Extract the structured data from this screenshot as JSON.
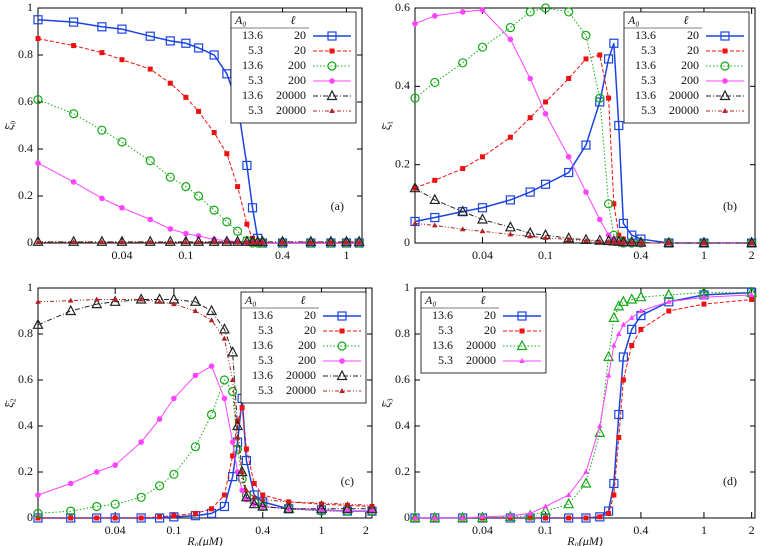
{
  "chart_data": [
    {
      "type": "line",
      "ylabel": "ξ̄₀",
      "annotation": "(a)",
      "xscale": "log",
      "xlim": [
        0.012,
        1.25
      ],
      "xticks": [
        0.04,
        0.1,
        0.4,
        1
      ],
      "ylim": [
        0,
        1
      ],
      "yticks": [
        0,
        0.2,
        0.4,
        0.6,
        0.8,
        1
      ],
      "legend": "upper right",
      "legend_header": [
        "A₀",
        "ℓ"
      ],
      "x": [
        0.012,
        0.02,
        0.03,
        0.04,
        0.06,
        0.08,
        0.1,
        0.12,
        0.15,
        0.18,
        0.21,
        0.24,
        0.26,
        0.28,
        0.3,
        0.4,
        0.6,
        0.8,
        1.0,
        1.2
      ],
      "series": [
        {
          "A0": "13.6",
          "ell": "20",
          "color": "#1a44e0",
          "marker": "square",
          "dash": "solid",
          "values": [
            0.95,
            0.94,
            0.92,
            0.91,
            0.88,
            0.86,
            0.85,
            0.83,
            0.8,
            0.72,
            0.59,
            0.33,
            0.15,
            0.02,
            0,
            0,
            0,
            0,
            0,
            0
          ]
        },
        {
          "A0": "5.3",
          "ell": "20",
          "color": "#ee1111",
          "marker": "square-filled",
          "dash": "dash",
          "values": [
            0.87,
            0.84,
            0.81,
            0.78,
            0.74,
            0.68,
            0.62,
            0.56,
            0.47,
            0.38,
            0.24,
            0.08,
            0.02,
            0,
            0,
            0,
            0,
            0,
            0,
            0
          ]
        },
        {
          "A0": "13.6",
          "ell": "200",
          "color": "#11aa11",
          "marker": "circle",
          "dash": "dot",
          "values": [
            0.61,
            0.55,
            0.48,
            0.43,
            0.35,
            0.28,
            0.24,
            0.2,
            0.14,
            0.09,
            0.05,
            0.01,
            0,
            0,
            0,
            0,
            0,
            0,
            0,
            0
          ]
        },
        {
          "A0": "5.3",
          "ell": "200",
          "color": "#ff44ff",
          "marker": "circle-filled",
          "dash": "solid",
          "values": [
            0.34,
            0.26,
            0.19,
            0.15,
            0.1,
            0.06,
            0.04,
            0.03,
            0.015,
            0.01,
            0.005,
            0,
            0,
            0,
            0,
            0,
            0,
            0,
            0,
            0
          ]
        },
        {
          "A0": "13.6",
          "ell": "20000",
          "color": "#222222",
          "marker": "triangle",
          "dash": "dash-dot",
          "values": [
            0.005,
            0.005,
            0.005,
            0.005,
            0.005,
            0.005,
            0.005,
            0.005,
            0.005,
            0.005,
            0.005,
            0.005,
            0.005,
            0.005,
            0.005,
            0.005,
            0.005,
            0.005,
            0.005,
            0.005
          ]
        },
        {
          "A0": "5.3",
          "ell": "20000",
          "color": "#b22222",
          "marker": "triangle-filled",
          "dash": "dash-dot-dot",
          "values": [
            0.003,
            0.003,
            0.003,
            0.003,
            0.003,
            0.003,
            0.003,
            0.003,
            0.003,
            0.003,
            0.003,
            0.003,
            0.003,
            0.003,
            0.003,
            0.003,
            0.003,
            0.003,
            0.003,
            0.003
          ]
        }
      ]
    },
    {
      "type": "line",
      "ylabel": "ξ̄₁",
      "annotation": "(b)",
      "xscale": "log",
      "xlim": [
        0.015,
        2.1
      ],
      "xticks": [
        0.04,
        0.1,
        0.4,
        1,
        2
      ],
      "ylim": [
        0,
        0.6
      ],
      "yticks": [
        0,
        0.2,
        0.4,
        0.6
      ],
      "legend": "upper right",
      "legend_header": [
        "A₀",
        "ℓ"
      ],
      "x": [
        0.015,
        0.02,
        0.03,
        0.04,
        0.06,
        0.08,
        0.1,
        0.14,
        0.18,
        0.22,
        0.25,
        0.27,
        0.29,
        0.31,
        0.35,
        0.4,
        0.6,
        1,
        2
      ],
      "series": [
        {
          "A0": "13.6",
          "ell": "20",
          "color": "#1a44e0",
          "marker": "square",
          "dash": "solid",
          "values": [
            0.055,
            0.065,
            0.08,
            0.09,
            0.11,
            0.13,
            0.15,
            0.18,
            0.25,
            0.36,
            0.47,
            0.51,
            0.3,
            0.05,
            0.02,
            0.01,
            0,
            0,
            0
          ]
        },
        {
          "A0": "5.3",
          "ell": "20",
          "color": "#ee1111",
          "marker": "square-filled",
          "dash": "dash",
          "values": [
            0.14,
            0.16,
            0.19,
            0.22,
            0.27,
            0.32,
            0.36,
            0.42,
            0.47,
            0.48,
            0.37,
            0.1,
            0.02,
            0.01,
            0,
            0,
            0,
            0,
            0
          ]
        },
        {
          "A0": "13.6",
          "ell": "200",
          "color": "#11aa11",
          "marker": "circle",
          "dash": "dot",
          "values": [
            0.37,
            0.41,
            0.46,
            0.5,
            0.55,
            0.59,
            0.6,
            0.59,
            0.53,
            0.37,
            0.1,
            0.02,
            0.005,
            0,
            0,
            0,
            0,
            0,
            0
          ]
        },
        {
          "A0": "5.3",
          "ell": "200",
          "color": "#ff44ff",
          "marker": "circle-filled",
          "dash": "solid",
          "values": [
            0.56,
            0.58,
            0.59,
            0.595,
            0.52,
            0.42,
            0.33,
            0.22,
            0.13,
            0.06,
            0.02,
            0.01,
            0,
            0,
            0,
            0,
            0,
            0,
            0
          ]
        },
        {
          "A0": "13.6",
          "ell": "20000",
          "color": "#222222",
          "marker": "triangle",
          "dash": "dash-dot",
          "values": [
            0.14,
            0.11,
            0.08,
            0.06,
            0.04,
            0.025,
            0.02,
            0.012,
            0.008,
            0.006,
            0.005,
            0.004,
            0.003,
            0.002,
            0.002,
            0.001,
            0,
            0,
            0
          ]
        },
        {
          "A0": "5.3",
          "ell": "20000",
          "color": "#b22222",
          "marker": "triangle-filled",
          "dash": "dash-dot-dot",
          "values": [
            0.05,
            0.045,
            0.035,
            0.03,
            0.022,
            0.017,
            0.013,
            0.009,
            0.006,
            0.004,
            0.003,
            0.002,
            0.002,
            0.001,
            0.001,
            0,
            0,
            0,
            0
          ]
        }
      ]
    },
    {
      "type": "line",
      "ylabel": "ξ̄₂",
      "xlabel": "R₀(μM)",
      "annotation": "(c)",
      "xscale": "log",
      "xlim": [
        0.012,
        2.2
      ],
      "xticks": [
        0.04,
        0.1,
        0.4,
        1,
        2
      ],
      "ylim": [
        0,
        1
      ],
      "yticks": [
        0,
        0.2,
        0.4,
        0.6,
        0.8,
        1
      ],
      "legend": "upper right",
      "legend_header": [
        "A₀",
        "ℓ"
      ],
      "x": [
        0.012,
        0.02,
        0.03,
        0.04,
        0.06,
        0.08,
        0.1,
        0.14,
        0.18,
        0.22,
        0.25,
        0.27,
        0.29,
        0.31,
        0.35,
        0.4,
        0.6,
        1,
        1.5,
        2.2
      ],
      "series": [
        {
          "A0": "13.6",
          "ell": "20",
          "color": "#1a44e0",
          "marker": "square",
          "dash": "solid",
          "values": [
            0,
            0,
            0,
            0,
            0,
            0,
            0.005,
            0.01,
            0.02,
            0.05,
            0.18,
            0.33,
            0.52,
            0.25,
            0.1,
            0.07,
            0.04,
            0.035,
            0.03,
            0.03
          ]
        },
        {
          "A0": "5.3",
          "ell": "20",
          "color": "#ee1111",
          "marker": "square-filled",
          "dash": "dash",
          "values": [
            0,
            0,
            0,
            0,
            0,
            0.005,
            0.01,
            0.02,
            0.04,
            0.1,
            0.27,
            0.42,
            0.48,
            0.3,
            0.15,
            0.1,
            0.07,
            0.06,
            0.055,
            0.05
          ]
        },
        {
          "A0": "13.6",
          "ell": "200",
          "color": "#11aa11",
          "marker": "circle",
          "dash": "dot",
          "values": [
            0.02,
            0.03,
            0.05,
            0.06,
            0.09,
            0.14,
            0.19,
            0.31,
            0.45,
            0.6,
            0.55,
            0.3,
            0.17,
            0.1,
            0.07,
            0.05,
            0.04,
            0.03,
            0.03,
            0.03
          ]
        },
        {
          "A0": "5.3",
          "ell": "200",
          "color": "#ff44ff",
          "marker": "circle-filled",
          "dash": "solid",
          "values": [
            0.1,
            0.15,
            0.2,
            0.23,
            0.33,
            0.43,
            0.52,
            0.62,
            0.66,
            0.52,
            0.33,
            0.2,
            0.12,
            0.08,
            0.06,
            0.05,
            0.04,
            0.035,
            0.03,
            0.03
          ]
        },
        {
          "A0": "13.6",
          "ell": "20000",
          "color": "#222222",
          "marker": "triangle",
          "dash": "dash-dot",
          "values": [
            0.84,
            0.9,
            0.93,
            0.94,
            0.95,
            0.95,
            0.95,
            0.94,
            0.9,
            0.82,
            0.72,
            0.4,
            0.2,
            0.09,
            0.06,
            0.05,
            0.04,
            0.04,
            0.04,
            0.04
          ]
        },
        {
          "A0": "5.3",
          "ell": "20000",
          "color": "#b22222",
          "marker": "triangle-filled",
          "dash": "dash-dot-dot",
          "values": [
            0.94,
            0.945,
            0.95,
            0.95,
            0.95,
            0.94,
            0.93,
            0.9,
            0.86,
            0.78,
            0.6,
            0.35,
            0.2,
            0.12,
            0.09,
            0.08,
            0.07,
            0.065,
            0.06,
            0.055
          ]
        }
      ]
    },
    {
      "type": "line",
      "ylabel": "ξ̄₃",
      "xlabel": "R₀(μM)",
      "annotation": "(d)",
      "xscale": "log",
      "xlim": [
        0.015,
        2.1
      ],
      "xticks": [
        0.04,
        0.1,
        0.4,
        1,
        2
      ],
      "ylim": [
        0,
        1
      ],
      "yticks": [
        0,
        0.2,
        0.4,
        0.6,
        0.8,
        1
      ],
      "legend": "upper left",
      "legend_header": [
        "A₀",
        "ℓ"
      ],
      "x": [
        0.015,
        0.02,
        0.03,
        0.04,
        0.06,
        0.08,
        0.1,
        0.14,
        0.18,
        0.22,
        0.25,
        0.27,
        0.29,
        0.31,
        0.35,
        0.4,
        0.6,
        1,
        2
      ],
      "series": [
        {
          "A0": "13.6",
          "ell": "20",
          "color": "#1a44e0",
          "marker": "square",
          "dash": "solid",
          "values": [
            0,
            0,
            0,
            0,
            0,
            0,
            0,
            0,
            0,
            0.005,
            0.03,
            0.15,
            0.45,
            0.7,
            0.82,
            0.88,
            0.94,
            0.97,
            0.98
          ]
        },
        {
          "A0": "5.3",
          "ell": "20",
          "color": "#ee1111",
          "marker": "square-filled",
          "dash": "dash",
          "values": [
            0,
            0,
            0,
            0,
            0,
            0,
            0,
            0,
            0,
            0.005,
            0.02,
            0.1,
            0.35,
            0.6,
            0.75,
            0.82,
            0.9,
            0.93,
            0.95
          ]
        },
        {
          "A0": "13.6",
          "ell": "20000",
          "color": "#11aa11",
          "marker": "triangle",
          "dash": "dot",
          "values": [
            0,
            0,
            0,
            0,
            0.005,
            0.01,
            0.03,
            0.06,
            0.15,
            0.37,
            0.7,
            0.87,
            0.92,
            0.94,
            0.95,
            0.96,
            0.97,
            0.98,
            0.98
          ]
        },
        {
          "A0": "5.3",
          "ell": "20000",
          "color": "#ff44ff",
          "marker": "triangle-filled",
          "dash": "solid",
          "values": [
            0,
            0,
            0,
            0.005,
            0.01,
            0.02,
            0.05,
            0.1,
            0.2,
            0.4,
            0.62,
            0.75,
            0.8,
            0.84,
            0.87,
            0.9,
            0.94,
            0.96,
            0.97
          ]
        }
      ]
    }
  ]
}
